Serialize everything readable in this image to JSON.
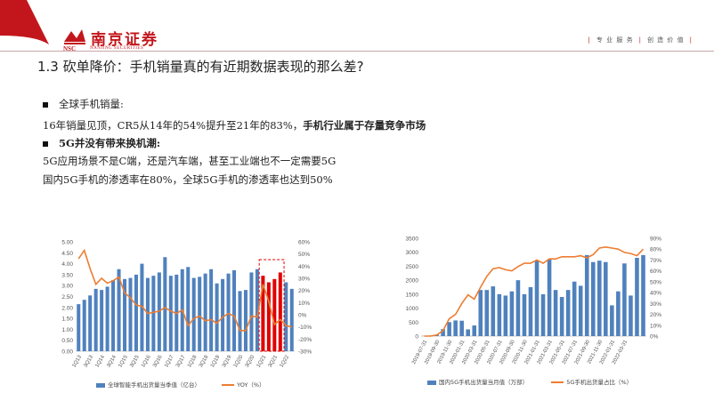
{
  "colors": {
    "brand_red": "#c3161c",
    "bar_blue": "#4f81bd",
    "bar_red": "#e00000",
    "line_orange": "#ed7d31"
  },
  "header": {
    "brand_cn": "南京证券",
    "brand_nsc": "NSC",
    "brand_en": "NANJING SECURITIES",
    "slogan": [
      "专 业 服 务",
      "创 造 价 值"
    ]
  },
  "title": "1.3 砍单降价：手机销量真的有近期数据表现的那么差?",
  "body": {
    "bullet1": "全球手机销量:",
    "line1_plain": "16年销量见顶，CR5从14年的54%提升至21年的83%，",
    "line1_bold": "手机行业属于存量竞争市场",
    "bullet2": "5G并没有带来换机潮:",
    "line2": "5G应用场景不是C端，还是汽车端，甚至工业端也不一定需要5G",
    "line3": "国内5G手机的渗透率在80%，全球5G手机的渗透率也达到50%"
  },
  "chart_data": [
    {
      "type": "bar",
      "categories": [
        "1Q13",
        "2Q13",
        "3Q13",
        "4Q13",
        "1Q14",
        "2Q14",
        "3Q14",
        "4Q14",
        "1Q15",
        "2Q15",
        "3Q15",
        "4Q15",
        "1Q16",
        "2Q16",
        "3Q16",
        "4Q16",
        "1Q17",
        "2Q17",
        "3Q17",
        "4Q17",
        "1Q18",
        "2Q18",
        "3Q18",
        "4Q18",
        "1Q19",
        "2Q19",
        "3Q19",
        "4Q19",
        "1Q20",
        "2Q20",
        "3Q20",
        "4Q20",
        "1Q21",
        "2Q21",
        "3Q21",
        "4Q21",
        "1Q22",
        "2Q22"
      ],
      "tick_labels": [
        "1Q13",
        "3Q13",
        "1Q14",
        "3Q14",
        "1Q15",
        "3Q15",
        "1Q16",
        "3Q16",
        "1Q17",
        "3Q17",
        "1Q18",
        "3Q18",
        "1Q19",
        "3Q19",
        "1Q20",
        "3Q20",
        "1Q21",
        "3Q21",
        "1Q22"
      ],
      "series": [
        {
          "name": "全球智能手机出货量当季值（亿台）",
          "axis": "left",
          "type": "bar",
          "values": [
            2.15,
            2.35,
            2.55,
            2.85,
            2.8,
            2.95,
            3.25,
            3.75,
            3.3,
            3.35,
            3.5,
            4.0,
            3.35,
            3.45,
            3.6,
            4.3,
            3.45,
            3.5,
            3.75,
            3.85,
            3.35,
            3.4,
            3.55,
            3.75,
            3.1,
            3.3,
            3.55,
            3.7,
            2.75,
            2.8,
            3.6,
            3.75,
            3.45,
            3.15,
            3.3,
            3.6,
            3.15,
            2.85
          ]
        },
        {
          "name": "YOY（%）",
          "axis": "right",
          "type": "line",
          "values": [
            46,
            53,
            38,
            25,
            30,
            26,
            28,
            31,
            18,
            14,
            8,
            7,
            1,
            2,
            3,
            6,
            3,
            1,
            4,
            -9,
            -3,
            -1,
            -5,
            -4,
            -7,
            -2,
            1,
            -1,
            -13,
            -13,
            -1,
            -2,
            25,
            11,
            -8,
            -4,
            -9,
            -10
          ]
        }
      ],
      "highlight_range": [
        "1Q21",
        "4Q21"
      ],
      "ylim": [
        0.0,
        5.0
      ],
      "ylim_right": [
        -30,
        60
      ],
      "yticks_left": [
        "0.00",
        "0.50",
        "1.00",
        "1.50",
        "2.00",
        "2.50",
        "3.00",
        "3.50",
        "4.00",
        "4.50",
        "5.00"
      ],
      "yticks_right": [
        "-30%",
        "-20%",
        "-10%",
        "0%",
        "10%",
        "20%",
        "30%",
        "40%",
        "50%",
        "60%"
      ],
      "legend": "bottom"
    },
    {
      "type": "bar",
      "categories": [
        "2019-07",
        "2019-08",
        "2019-09",
        "2019-10",
        "2019-11",
        "2019-12",
        "2020-01",
        "2020-02",
        "2020-03",
        "2020-04",
        "2020-05",
        "2020-06",
        "2020-07",
        "2020-08",
        "2020-09",
        "2020-10",
        "2020-11",
        "2020-12",
        "2021-01",
        "2021-02",
        "2021-03",
        "2021-04",
        "2021-05",
        "2021-06",
        "2021-07",
        "2021-08",
        "2021-09",
        "2021-10",
        "2021-11",
        "2021-12",
        "2022-01",
        "2022-02",
        "2022-03",
        "2022-04",
        "2022-05",
        "2022-06"
      ],
      "tick_labels": [
        "2019-07-31",
        "2019-09-30",
        "2019-11-30",
        "2020-01-31",
        "2020-03-31",
        "2020-05-31",
        "2020-07-31",
        "2020-09-30",
        "2020-11-30",
        "2021-01-31",
        "2021-03-31",
        "2021-05-31",
        "2021-07-31",
        "2021-09-30",
        "2021-11-30",
        "2022-01-31",
        "2022-03-31"
      ],
      "series": [
        {
          "name": "国内5G手机出货量当月值（万部）",
          "axis": "left",
          "type": "bar",
          "values": [
            5,
            20,
            50,
            250,
            500,
            560,
            550,
            240,
            380,
            1650,
            1650,
            1780,
            1500,
            1450,
            1600,
            2000,
            1500,
            1750,
            2700,
            1500,
            2750,
            1650,
            1400,
            1650,
            1950,
            1800,
            2900,
            2650,
            2700,
            2650,
            1100,
            1600,
            2600,
            1450,
            2800,
            2900
          ]
        },
        {
          "name": "5G手机出货量占比（%）",
          "axis": "right",
          "type": "line",
          "values": [
            0,
            0,
            1,
            5,
            16,
            20,
            30,
            38,
            34,
            45,
            55,
            62,
            63,
            61,
            60,
            64,
            67,
            67,
            70,
            67,
            71,
            71,
            73,
            73,
            73,
            74,
            72,
            75,
            81,
            82,
            81,
            80,
            77,
            76,
            74,
            80
          ]
        }
      ],
      "ylim": [
        0,
        3500
      ],
      "ylim_right": [
        0,
        90
      ],
      "yticks_left": [
        "0",
        "500",
        "1000",
        "1500",
        "2000",
        "2500",
        "3000",
        "3500"
      ],
      "yticks_right": [
        "0%",
        "10%",
        "20%",
        "30%",
        "40%",
        "50%",
        "60%",
        "70%",
        "80%",
        "90%"
      ],
      "legend": "bottom"
    }
  ]
}
